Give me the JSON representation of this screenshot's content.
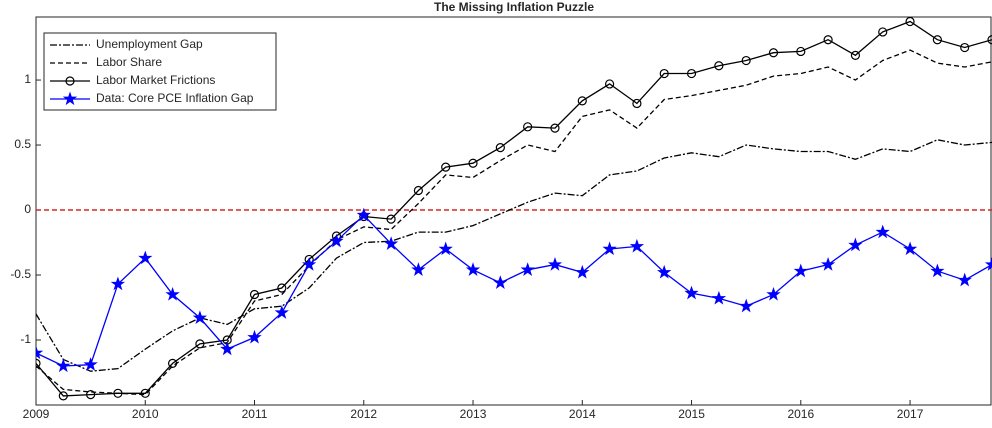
{
  "chart_data": {
    "type": "line",
    "title": "The Missing Inflation Puzzle",
    "x": [
      2009,
      2009.25,
      2009.5,
      2009.75,
      2010,
      2010.25,
      2010.5,
      2010.75,
      2011,
      2011.25,
      2011.5,
      2011.75,
      2012,
      2012.25,
      2012.5,
      2012.75,
      2013,
      2013.25,
      2013.5,
      2013.75,
      2014,
      2014.25,
      2014.5,
      2014.75,
      2015,
      2015.25,
      2015.5,
      2015.75,
      2016,
      2016.25,
      2016.5,
      2016.75,
      2017,
      2017.25,
      2017.5,
      2017.75
    ],
    "series": [
      {
        "name": "Unemployment Gap",
        "color": "#000000",
        "style": "dashdot",
        "marker": "none",
        "values": [
          -0.8,
          -1.15,
          -1.24,
          -1.22,
          -1.07,
          -0.93,
          -0.83,
          -0.88,
          -0.76,
          -0.74,
          -0.6,
          -0.37,
          -0.25,
          -0.24,
          -0.17,
          -0.17,
          -0.12,
          -0.03,
          0.06,
          0.13,
          0.11,
          0.27,
          0.3,
          0.4,
          0.44,
          0.41,
          0.5,
          0.47,
          0.45,
          0.45,
          0.39,
          0.47,
          0.45,
          0.54,
          0.5,
          0.52
        ]
      },
      {
        "name": "Labor Share",
        "color": "#000000",
        "style": "dashed",
        "marker": "none",
        "values": [
          -1.2,
          -1.38,
          -1.4,
          -1.41,
          -1.42,
          -1.2,
          -1.06,
          -1.02,
          -0.7,
          -0.65,
          -0.43,
          -0.23,
          -0.13,
          -0.15,
          0.05,
          0.27,
          0.25,
          0.38,
          0.5,
          0.45,
          0.72,
          0.77,
          0.63,
          0.85,
          0.88,
          0.92,
          0.96,
          1.03,
          1.05,
          1.1,
          1.0,
          1.15,
          1.23,
          1.13,
          1.1,
          1.14
        ]
      },
      {
        "name": "Labor Market Frictions",
        "color": "#000000",
        "style": "solid",
        "marker": "circle",
        "values": [
          -1.18,
          -1.43,
          -1.42,
          -1.41,
          -1.41,
          -1.18,
          -1.03,
          -1.0,
          -0.65,
          -0.6,
          -0.38,
          -0.2,
          -0.05,
          -0.07,
          0.15,
          0.33,
          0.36,
          0.48,
          0.64,
          0.63,
          0.84,
          0.97,
          0.82,
          1.05,
          1.05,
          1.11,
          1.15,
          1.21,
          1.22,
          1.31,
          1.19,
          1.37,
          1.45,
          1.31,
          1.25,
          1.31
        ]
      },
      {
        "name": "Data: Core PCE Inflation Gap",
        "color": "#0000ff",
        "style": "solid",
        "marker": "star",
        "values": [
          -1.1,
          -1.2,
          -1.19,
          -0.57,
          -0.37,
          -0.65,
          -0.83,
          -1.07,
          -0.98,
          -0.79,
          -0.42,
          -0.24,
          -0.04,
          -0.26,
          -0.46,
          -0.3,
          -0.46,
          -0.56,
          -0.46,
          -0.42,
          -0.48,
          -0.3,
          -0.28,
          -0.48,
          -0.64,
          -0.68,
          -0.74,
          -0.65,
          -0.47,
          -0.42,
          -0.27,
          -0.17,
          -0.3,
          -0.47,
          -0.54,
          -0.42
        ]
      }
    ],
    "reference_line": {
      "value": 0,
      "color": "#d62728",
      "style": "dashed"
    },
    "xlim": [
      2009,
      2017.75
    ],
    "xticks": [
      2009,
      2010,
      2011,
      2012,
      2013,
      2014,
      2015,
      2016,
      2017
    ],
    "ylim": [
      -1.5,
      1.485
    ],
    "yticks": [
      -1,
      -0.5,
      0,
      0.5,
      1
    ],
    "legend": "upper left",
    "grid": false
  }
}
